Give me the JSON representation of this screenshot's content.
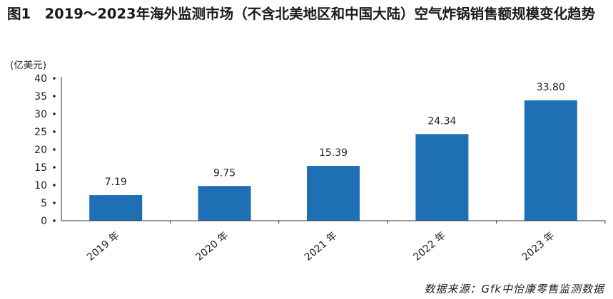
{
  "title": "图1　2019～2023年海外监测市场（不含北美地区和中国大陆）空气炸锅销售额规模变化趋势",
  "chart_data": {
    "type": "bar",
    "unit_label": "(亿美元)",
    "categories": [
      "2019 年",
      "2020 年",
      "2021 年",
      "2022 年",
      "2023 年"
    ],
    "values": [
      7.19,
      9.75,
      15.39,
      24.34,
      33.8
    ],
    "value_labels": [
      "7.19",
      "9.75",
      "15.39",
      "24.34",
      "33.80"
    ],
    "y_ticks": [
      "0",
      "5",
      "10",
      "15",
      "20",
      "25",
      "30",
      "35",
      "40"
    ],
    "ylim": [
      0,
      40
    ],
    "grid": false,
    "bar_color": "#1f6fb5"
  },
  "source": "数据来源：Gfk中怡康零售监测数据"
}
